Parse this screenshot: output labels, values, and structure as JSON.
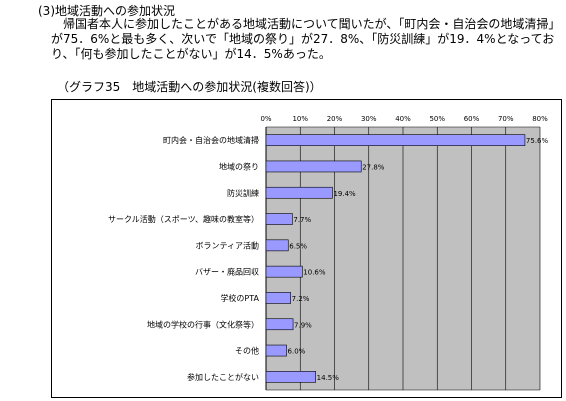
{
  "header": {
    "section_title": "(3)地域活動への参加状況",
    "paragraph": "帰国者本人に参加したことがある地域活動について聞いたが、「町内会・自治会の地域清掃」が75．6%と最も多く、次いで「地域の祭り」が27．8%、「防災訓練」が19．4%となっており、「何も参加したことがない」が14．5%あった。"
  },
  "chart_data": {
    "type": "bar",
    "orientation": "horizontal",
    "title": "（グラフ35　地域活動への参加状況(複数回答)）",
    "categories": [
      "町内会・自治会の地域清掃",
      "地域の祭り",
      "防災訓練",
      "サークル活動（スポーツ、趣味の教室等）",
      "ボランティア活動",
      "バザー・廃品回収",
      "学校のPTA",
      "地域の学校の行事（文化祭等）",
      "その他",
      "参加したことがない"
    ],
    "values": [
      75.6,
      27.8,
      19.4,
      7.7,
      6.5,
      10.6,
      7.2,
      7.9,
      6.0,
      14.5
    ],
    "value_labels": [
      "75.6%",
      "27.8%",
      "19.4%",
      "7.7%",
      "6.5%",
      "10.6%",
      "7.2%",
      "7.9%",
      "6.0%",
      "14.5%"
    ],
    "xlim": [
      0,
      80
    ],
    "xticks": [
      "0%",
      "10%",
      "20%",
      "30%",
      "40%",
      "50%",
      "60%",
      "70%",
      "80%"
    ],
    "grid": true,
    "colors": {
      "bar_fill": "#9999ff",
      "plot_bg": "#c0c0c0",
      "bar_edge": "#000000"
    }
  }
}
